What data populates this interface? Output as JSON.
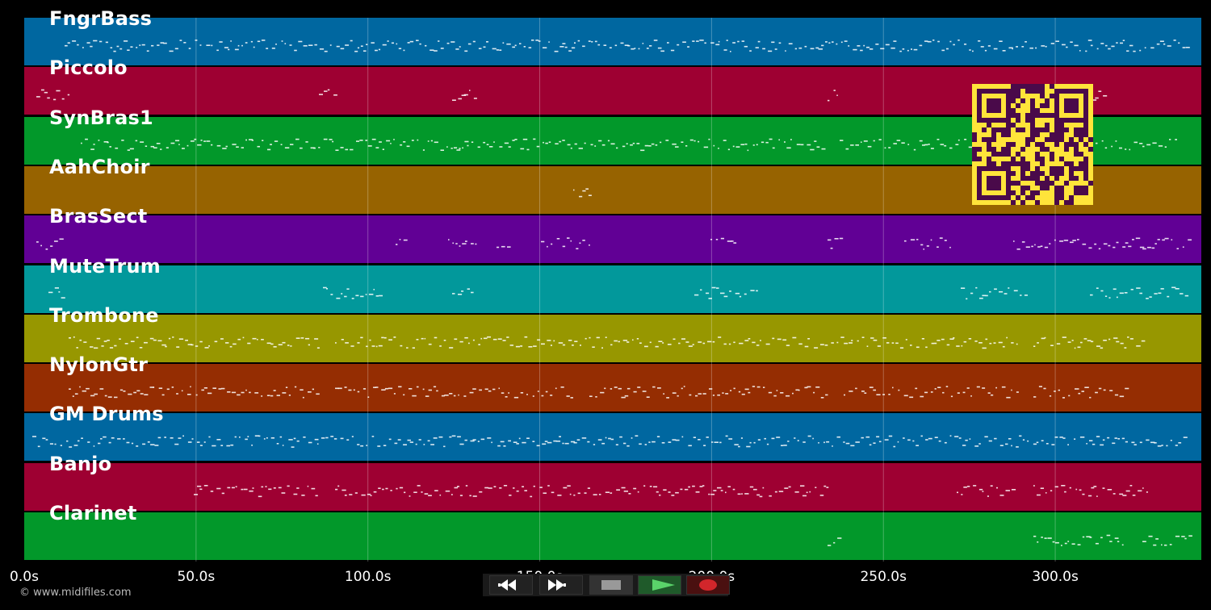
{
  "tracks": [
    {
      "name": "FngrBass",
      "color": "#0067a0"
    },
    {
      "name": "Piccolo",
      "color": "#9e0032"
    },
    {
      "name": "SynBras1",
      "color": "#02982a"
    },
    {
      "name": "AahChoir",
      "color": "#976300"
    },
    {
      "name": "BrasSect",
      "color": "#610095"
    },
    {
      "name": "MuteTrum",
      "color": "#02989b"
    },
    {
      "name": "Trombone",
      "color": "#979700"
    },
    {
      "name": "NylonGtr",
      "color": "#952d02"
    },
    {
      "name": "GM Drums",
      "color": "#0067a0"
    },
    {
      "name": "Banjo",
      "color": "#9e0032"
    },
    {
      "name": "Clarinet",
      "color": "#02982a"
    }
  ],
  "timeline": {
    "ticks": [
      "0.0s",
      "50.0s",
      "100.0s",
      "150.0s",
      "200.0s",
      "250.0s",
      "300.0s"
    ],
    "tick_values": [
      0,
      50,
      100,
      150,
      200,
      250,
      300
    ],
    "duration": 342.5
  },
  "copyright": "© www.midifiles.com",
  "transport": {
    "rewind_icon": "rewind-icon",
    "forward_icon": "fast-forward-icon",
    "stop_icon": "stop-icon",
    "play_icon": "play-icon",
    "record_icon": "record-icon"
  }
}
